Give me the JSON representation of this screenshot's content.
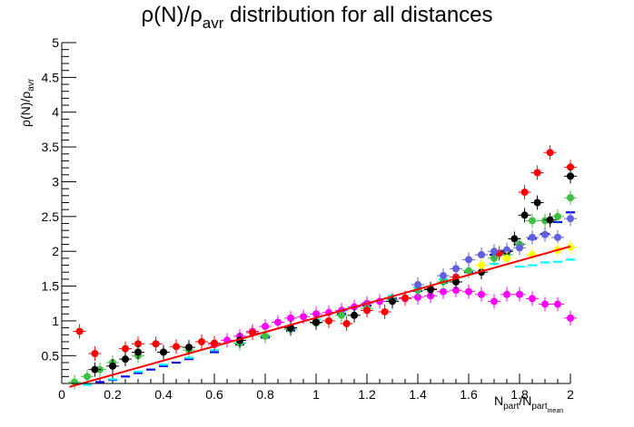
{
  "chart_data": {
    "type": "scatter",
    "title": {
      "base": "ρ(N)/ρ",
      "sub": "avr",
      "rest": " distribution for all distances"
    },
    "ylabel": {
      "base": "ρ(N)/ρ",
      "sub": "avr"
    },
    "xlabel": {
      "n1": "N",
      "s1": "part",
      "mid": "/N",
      "n2": "",
      "s2": "part",
      "s3": "mean"
    },
    "xlim": [
      0,
      2
    ],
    "ylim": [
      0.1,
      5
    ],
    "x_ticks": [
      "0",
      "0.2",
      "0.4",
      "0.6",
      "0.8",
      "1",
      "1.2",
      "1.4",
      "1.6",
      "1.8",
      "2"
    ],
    "x_tick_values": [
      0,
      0.2,
      0.4,
      0.6,
      0.8,
      1.0,
      1.2,
      1.4,
      1.6,
      1.8,
      2.0
    ],
    "y_ticks": [
      "0.5",
      "1",
      "1.5",
      "2",
      "2.5",
      "3",
      "3.5",
      "4",
      "4.5",
      "5"
    ],
    "y_tick_values": [
      0.5,
      1,
      1.5,
      2,
      2.5,
      3,
      3.5,
      4,
      4.5,
      5
    ],
    "grid": false,
    "legend": "none",
    "series": [
      {
        "color": "#0000ff",
        "marker": "dash",
        "points": [
          [
            0.05,
            0.04
          ],
          [
            0.1,
            0.07
          ],
          [
            0.15,
            0.12
          ],
          [
            0.2,
            0.15
          ],
          [
            0.25,
            0.2
          ],
          [
            0.3,
            0.25
          ],
          [
            0.35,
            0.3
          ],
          [
            0.4,
            0.35
          ],
          [
            0.45,
            0.4
          ],
          [
            0.5,
            0.45
          ],
          [
            0.6,
            0.55
          ],
          [
            0.7,
            0.66
          ],
          [
            0.8,
            0.76
          ],
          [
            0.9,
            0.86
          ],
          [
            1.0,
            0.97
          ],
          [
            1.1,
            1.1
          ],
          [
            1.2,
            1.22
          ],
          [
            1.3,
            1.32
          ],
          [
            1.4,
            1.43
          ],
          [
            1.5,
            1.55
          ],
          [
            1.6,
            1.7
          ],
          [
            1.7,
            1.95
          ],
          [
            1.75,
            2.0
          ],
          [
            1.8,
            2.1
          ],
          [
            1.85,
            2.18
          ],
          [
            1.9,
            2.25
          ],
          [
            1.95,
            2.42
          ],
          [
            2.0,
            2.56
          ]
        ]
      },
      {
        "color": "#00ffff",
        "marker": "dash",
        "points": [
          [
            0.1,
            0.08
          ],
          [
            0.2,
            0.16
          ],
          [
            0.3,
            0.27
          ],
          [
            0.4,
            0.37
          ],
          [
            0.5,
            0.47
          ],
          [
            0.6,
            0.58
          ],
          [
            0.7,
            0.68
          ],
          [
            0.8,
            0.79
          ],
          [
            0.9,
            0.9
          ],
          [
            1.0,
            1.02
          ],
          [
            1.1,
            1.14
          ],
          [
            1.2,
            1.26
          ],
          [
            1.3,
            1.36
          ],
          [
            1.4,
            1.48
          ],
          [
            1.5,
            1.6
          ],
          [
            1.6,
            1.72
          ],
          [
            1.7,
            1.82
          ],
          [
            1.8,
            1.78
          ],
          [
            1.85,
            1.8
          ],
          [
            1.9,
            1.84
          ],
          [
            1.95,
            1.85
          ],
          [
            2.0,
            1.88
          ]
        ]
      },
      {
        "color": "#ff00ff",
        "marker": "circle",
        "points": [
          [
            0.6,
            0.66
          ],
          [
            0.65,
            0.72
          ],
          [
            0.7,
            0.78
          ],
          [
            0.75,
            0.85
          ],
          [
            0.8,
            0.92
          ],
          [
            0.85,
            0.98
          ],
          [
            0.9,
            1.04
          ],
          [
            0.95,
            1.06
          ],
          [
            1.0,
            1.1
          ],
          [
            1.05,
            1.12
          ],
          [
            1.1,
            1.15
          ],
          [
            1.15,
            1.2
          ],
          [
            1.2,
            1.25
          ],
          [
            1.25,
            1.28
          ],
          [
            1.3,
            1.3
          ],
          [
            1.35,
            1.32
          ],
          [
            1.4,
            1.34
          ],
          [
            1.45,
            1.36
          ],
          [
            1.5,
            1.42
          ],
          [
            1.55,
            1.44
          ],
          [
            1.6,
            1.42
          ],
          [
            1.65,
            1.38
          ],
          [
            1.7,
            1.28
          ],
          [
            1.75,
            1.38
          ],
          [
            1.8,
            1.38
          ],
          [
            1.85,
            1.32
          ],
          [
            1.9,
            1.24
          ],
          [
            1.95,
            1.24
          ],
          [
            2.0,
            1.04
          ]
        ]
      },
      {
        "color": "#40c040",
        "marker": "circle",
        "points": [
          [
            0.05,
            0.12
          ],
          [
            0.1,
            0.2
          ],
          [
            0.15,
            0.3
          ],
          [
            0.2,
            0.4
          ],
          [
            0.3,
            0.5
          ],
          [
            0.4,
            0.55
          ],
          [
            0.5,
            0.58
          ],
          [
            0.7,
            0.68
          ],
          [
            0.8,
            0.78
          ],
          [
            0.9,
            0.88
          ],
          [
            1.0,
            0.97
          ],
          [
            1.1,
            1.08
          ],
          [
            1.2,
            1.18
          ],
          [
            1.3,
            1.3
          ],
          [
            1.4,
            1.44
          ],
          [
            1.5,
            1.56
          ],
          [
            1.6,
            1.72
          ],
          [
            1.7,
            1.9
          ],
          [
            1.75,
            1.95
          ],
          [
            1.8,
            2.1
          ],
          [
            1.85,
            2.44
          ],
          [
            1.9,
            2.44
          ],
          [
            1.95,
            2.5
          ],
          [
            2.0,
            2.77
          ]
        ]
      },
      {
        "color": "#ff0000",
        "marker": "circle",
        "points": [
          [
            0.07,
            0.85
          ],
          [
            0.13,
            0.53
          ],
          [
            0.25,
            0.6
          ],
          [
            0.3,
            0.67
          ],
          [
            0.37,
            0.67
          ],
          [
            0.45,
            0.63
          ],
          [
            0.55,
            0.7
          ],
          [
            0.6,
            0.68
          ],
          [
            0.75,
            0.83
          ],
          [
            0.9,
            0.9
          ],
          [
            1.0,
            0.98
          ],
          [
            1.05,
            1.0
          ],
          [
            1.12,
            0.96
          ],
          [
            1.2,
            1.15
          ],
          [
            1.27,
            1.13
          ],
          [
            1.35,
            1.33
          ],
          [
            1.45,
            1.46
          ],
          [
            1.55,
            1.63
          ],
          [
            1.65,
            1.95
          ],
          [
            1.72,
            1.97
          ],
          [
            1.82,
            2.85
          ],
          [
            1.87,
            3.13
          ],
          [
            1.92,
            3.42
          ],
          [
            2.0,
            3.21
          ]
        ]
      },
      {
        "color": "#000000",
        "marker": "circle",
        "points": [
          [
            0.07,
            0.05
          ],
          [
            0.13,
            0.3
          ],
          [
            0.2,
            0.35
          ],
          [
            0.25,
            0.45
          ],
          [
            0.3,
            0.55
          ],
          [
            0.4,
            0.55
          ],
          [
            0.5,
            0.62
          ],
          [
            0.7,
            0.72
          ],
          [
            0.9,
            0.9
          ],
          [
            1.0,
            0.98
          ],
          [
            1.15,
            1.08
          ],
          [
            1.3,
            1.28
          ],
          [
            1.45,
            1.45
          ],
          [
            1.55,
            1.56
          ],
          [
            1.65,
            1.7
          ],
          [
            1.75,
            2.0
          ],
          [
            1.78,
            2.18
          ],
          [
            1.82,
            2.52
          ],
          [
            1.87,
            2.7
          ],
          [
            1.92,
            2.45
          ],
          [
            2.0,
            3.08
          ]
        ]
      },
      {
        "color": "#6060e0",
        "marker": "circle",
        "points": [
          [
            1.4,
            1.52
          ],
          [
            1.5,
            1.65
          ],
          [
            1.55,
            1.75
          ],
          [
            1.6,
            1.88
          ],
          [
            1.65,
            1.95
          ],
          [
            1.7,
            2.0
          ],
          [
            1.75,
            2.02
          ],
          [
            1.8,
            2.05
          ],
          [
            1.85,
            2.2
          ],
          [
            1.9,
            2.24
          ],
          [
            1.95,
            2.2
          ],
          [
            2.0,
            2.47
          ]
        ]
      },
      {
        "color": "#ffff00",
        "marker": "circle",
        "points": [
          [
            1.65,
            1.8
          ],
          [
            1.75,
            1.9
          ],
          [
            1.85,
            1.95
          ],
          [
            1.95,
            2.02
          ],
          [
            2.0,
            2.06
          ]
        ]
      }
    ],
    "fit_lines": [
      {
        "color": "#ff0000",
        "x": [
          0.03,
          2.0
        ],
        "y": [
          0.05,
          2.07
        ]
      }
    ]
  }
}
